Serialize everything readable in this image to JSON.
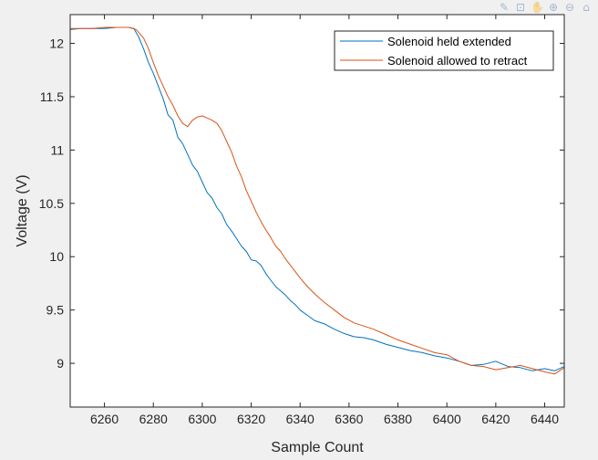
{
  "toolbar": {
    "icons": [
      {
        "name": "brush-icon",
        "glyph": "✎"
      },
      {
        "name": "datatip-icon",
        "glyph": "⊡"
      },
      {
        "name": "pan-icon",
        "glyph": "✋"
      },
      {
        "name": "zoom-in-icon",
        "glyph": "⊕"
      },
      {
        "name": "zoom-out-icon",
        "glyph": "⊖"
      },
      {
        "name": "home-icon",
        "glyph": "⌂"
      }
    ]
  },
  "chart_data": {
    "type": "line",
    "title": "",
    "xlabel": "Sample Count",
    "ylabel": "Voltage (V)",
    "xlim": [
      6246,
      6448
    ],
    "ylim": [
      8.59,
      12.27
    ],
    "xticks": [
      6260,
      6280,
      6300,
      6320,
      6340,
      6360,
      6380,
      6400,
      6420,
      6440
    ],
    "yticks": [
      9,
      9.5,
      10,
      10.5,
      11,
      11.5,
      12
    ],
    "grid": false,
    "legend_position": "top-right",
    "series": [
      {
        "name": "Solenoid held extended",
        "color": "#0072BD",
        "x": [
          6246,
          6250,
          6255,
          6260,
          6265,
          6270,
          6272,
          6274,
          6276,
          6278,
          6280,
          6282,
          6284,
          6286,
          6288,
          6290,
          6292,
          6294,
          6296,
          6298,
          6300,
          6302,
          6304,
          6306,
          6308,
          6310,
          6312,
          6314,
          6316,
          6318,
          6320,
          6322,
          6324,
          6326,
          6328,
          6330,
          6332,
          6334,
          6336,
          6338,
          6340,
          6343,
          6346,
          6350,
          6354,
          6358,
          6362,
          6366,
          6370,
          6375,
          6380,
          6385,
          6390,
          6395,
          6400,
          6405,
          6410,
          6415,
          6420,
          6425,
          6430,
          6435,
          6440,
          6444,
          6448
        ],
        "y": [
          12.13,
          12.14,
          12.14,
          12.14,
          12.15,
          12.15,
          12.14,
          12.06,
          11.95,
          11.82,
          11.72,
          11.6,
          11.48,
          11.33,
          11.28,
          11.12,
          11.06,
          10.96,
          10.86,
          10.8,
          10.7,
          10.6,
          10.55,
          10.46,
          10.4,
          10.3,
          10.24,
          10.17,
          10.1,
          10.05,
          9.97,
          9.96,
          9.92,
          9.84,
          9.78,
          9.72,
          9.68,
          9.64,
          9.59,
          9.55,
          9.5,
          9.45,
          9.4,
          9.37,
          9.32,
          9.28,
          9.25,
          9.24,
          9.22,
          9.18,
          9.15,
          9.12,
          9.1,
          9.07,
          9.05,
          9.02,
          8.98,
          8.99,
          9.02,
          8.97,
          8.96,
          8.93,
          8.95,
          8.93,
          8.97
        ]
      },
      {
        "name": "Solenoid allowed to retract",
        "color": "#D95319",
        "x": [
          6246,
          6250,
          6255,
          6260,
          6265,
          6270,
          6273,
          6276,
          6278,
          6280,
          6282,
          6284,
          6286,
          6288,
          6290,
          6292,
          6294,
          6296,
          6298,
          6300,
          6302,
          6304,
          6306,
          6308,
          6310,
          6312,
          6314,
          6316,
          6318,
          6320,
          6322,
          6324,
          6326,
          6328,
          6330,
          6332,
          6334,
          6336,
          6338,
          6340,
          6343,
          6346,
          6350,
          6354,
          6358,
          6362,
          6366,
          6370,
          6375,
          6380,
          6385,
          6390,
          6395,
          6400,
          6405,
          6410,
          6415,
          6420,
          6425,
          6430,
          6435,
          6440,
          6444,
          6448
        ],
        "y": [
          12.14,
          12.14,
          12.14,
          12.15,
          12.15,
          12.15,
          12.13,
          12.05,
          11.95,
          11.82,
          11.7,
          11.6,
          11.5,
          11.42,
          11.32,
          11.25,
          11.22,
          11.28,
          11.31,
          11.32,
          11.3,
          11.28,
          11.25,
          11.18,
          11.08,
          10.98,
          10.85,
          10.75,
          10.62,
          10.52,
          10.42,
          10.33,
          10.25,
          10.18,
          10.1,
          10.05,
          9.98,
          9.92,
          9.86,
          9.8,
          9.72,
          9.65,
          9.57,
          9.5,
          9.43,
          9.38,
          9.35,
          9.32,
          9.27,
          9.22,
          9.18,
          9.14,
          9.1,
          9.08,
          9.02,
          8.98,
          8.97,
          8.94,
          8.96,
          8.98,
          8.95,
          8.92,
          8.9,
          8.96
        ]
      }
    ]
  }
}
